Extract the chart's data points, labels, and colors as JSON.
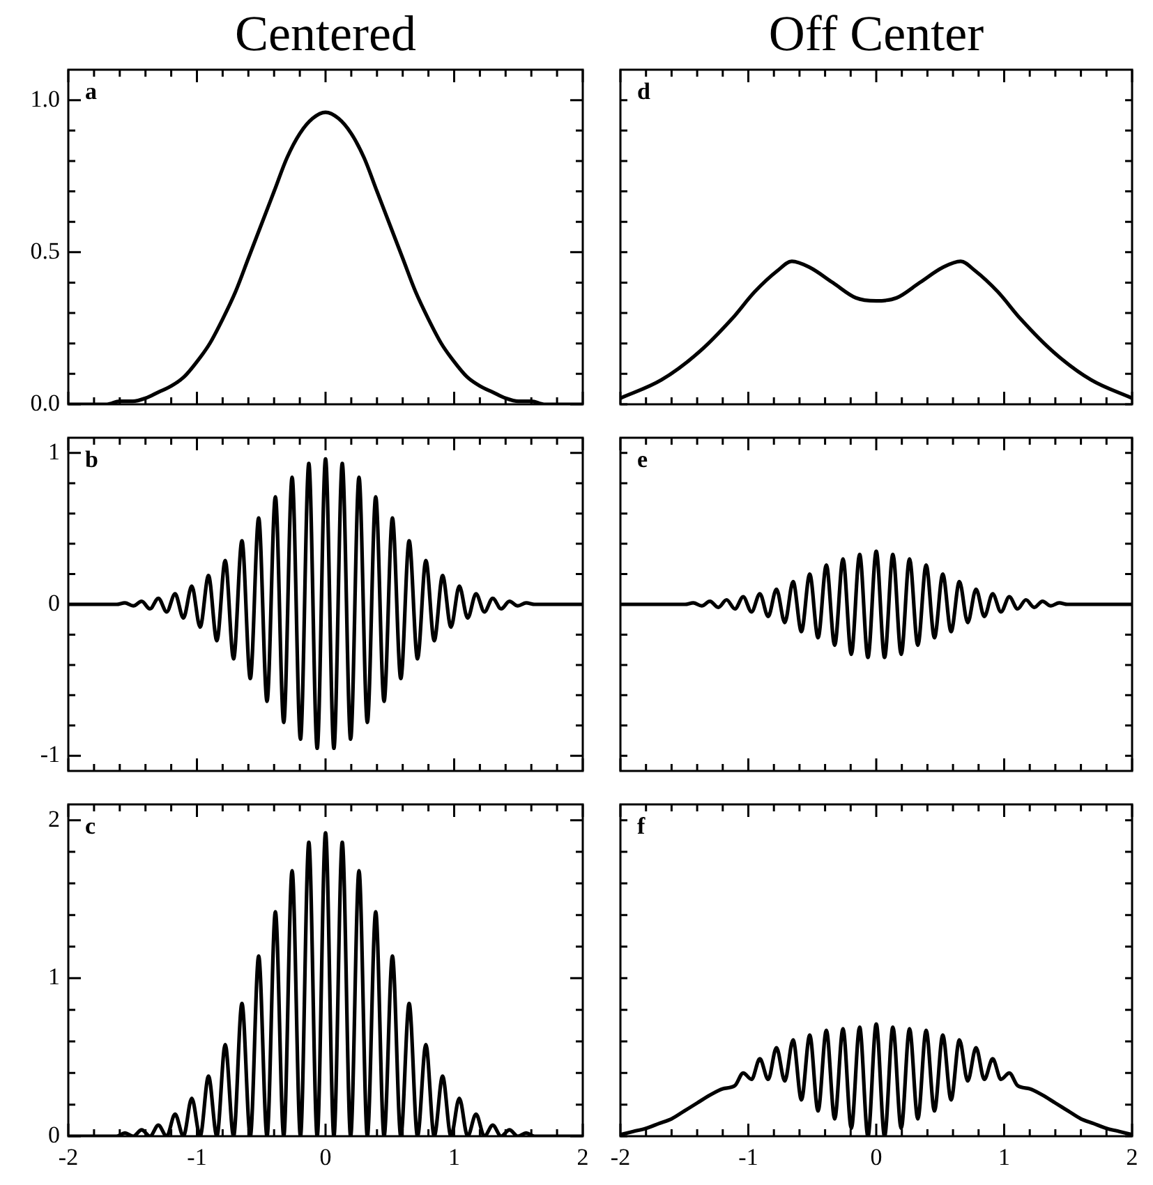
{
  "chart_data": [
    {
      "type": "line",
      "title": "Centered",
      "annotations": [
        "a"
      ],
      "color": "#000000",
      "tick_labels": "y",
      "xlim": [
        -2,
        2
      ],
      "ylim": [
        0,
        1.1
      ],
      "xticks": [
        -2,
        {
          "value": -1.8,
          "label": null
        },
        {
          "value": -1.6,
          "label": null
        },
        {
          "value": -1.4,
          "label": null
        },
        {
          "value": -1.2,
          "label": null
        },
        -1,
        {
          "value": -0.8,
          "label": null
        },
        {
          "value": -0.6,
          "label": null
        },
        {
          "value": -0.4,
          "label": null
        },
        {
          "value": -0.2,
          "label": null
        },
        0,
        {
          "value": 0.2,
          "label": null
        },
        {
          "value": 0.4,
          "label": null
        },
        {
          "value": 0.6,
          "label": null
        },
        {
          "value": 0.8,
          "label": null
        },
        1,
        {
          "value": 1.2,
          "label": null
        },
        {
          "value": 1.4,
          "label": null
        },
        {
          "value": 1.6,
          "label": null
        },
        {
          "value": 1.8,
          "label": null
        },
        2
      ],
      "yticks": [
        {
          "value": 0,
          "label": "0.0"
        },
        {
          "value": 0.1,
          "label": null
        },
        {
          "value": 0.2,
          "label": null
        },
        {
          "value": 0.3,
          "label": null
        },
        {
          "value": 0.4,
          "label": null
        },
        {
          "value": 0.5,
          "label": "0.5"
        },
        {
          "value": 0.6,
          "label": null
        },
        {
          "value": 0.7,
          "label": null
        },
        {
          "value": 0.8,
          "label": null
        },
        {
          "value": 0.9,
          "label": null
        },
        {
          "value": 1.0,
          "label": "1.0"
        }
      ],
      "x": [
        -2,
        -1.9,
        -1.8,
        -1.7,
        -1.6,
        -1.5,
        -1.4,
        -1.3,
        -1.2,
        -1.1,
        -1,
        -0.9,
        -0.8,
        -0.7,
        -0.6,
        -0.5,
        -0.4,
        -0.3,
        -0.2,
        -0.1,
        0,
        0.1,
        0.2,
        0.3,
        0.4,
        0.5,
        0.6,
        0.7,
        0.8,
        0.9,
        1,
        1.1,
        1.2,
        1.3,
        1.4,
        1.5,
        1.6,
        1.7,
        1.8,
        1.9,
        2
      ],
      "values": [
        0,
        0,
        0,
        0,
        0.01,
        0.01,
        0.02,
        0.04,
        0.06,
        0.09,
        0.14,
        0.2,
        0.28,
        0.37,
        0.48,
        0.59,
        0.7,
        0.81,
        0.89,
        0.94,
        0.96,
        0.94,
        0.89,
        0.81,
        0.7,
        0.59,
        0.48,
        0.37,
        0.28,
        0.2,
        0.14,
        0.09,
        0.06,
        0.04,
        0.02,
        0.01,
        0.01,
        0,
        0,
        0,
        0
      ]
    },
    {
      "type": "line",
      "title": "Off Center",
      "annotations": [
        "d"
      ],
      "color": "#000000",
      "tick_labels": false,
      "xlim": [
        -2,
        2
      ],
      "ylim": [
        0,
        1.1
      ],
      "xticks": [
        -2,
        {
          "value": -1.8,
          "label": null
        },
        {
          "value": -1.6,
          "label": null
        },
        {
          "value": -1.4,
          "label": null
        },
        {
          "value": -1.2,
          "label": null
        },
        -1,
        {
          "value": -0.8,
          "label": null
        },
        {
          "value": -0.6,
          "label": null
        },
        {
          "value": -0.4,
          "label": null
        },
        {
          "value": -0.2,
          "label": null
        },
        0,
        {
          "value": 0.2,
          "label": null
        },
        {
          "value": 0.4,
          "label": null
        },
        {
          "value": 0.6,
          "label": null
        },
        {
          "value": 0.8,
          "label": null
        },
        1,
        {
          "value": 1.2,
          "label": null
        },
        {
          "value": 1.4,
          "label": null
        },
        {
          "value": 1.6,
          "label": null
        },
        {
          "value": 1.8,
          "label": null
        },
        2
      ],
      "yticks": [
        {
          "value": 0,
          "label": null
        },
        {
          "value": 0.1,
          "label": null
        },
        {
          "value": 0.2,
          "label": null
        },
        {
          "value": 0.3,
          "label": null
        },
        {
          "value": 0.4,
          "label": null
        },
        {
          "value": 0.5,
          "label": null
        },
        {
          "value": 0.6,
          "label": null
        },
        {
          "value": 0.7,
          "label": null
        },
        {
          "value": 0.8,
          "label": null
        },
        {
          "value": 0.9,
          "label": null
        },
        {
          "value": 1.0,
          "label": null
        }
      ],
      "x": [
        -2,
        -1.68,
        -1.39,
        -1.13,
        -0.95,
        -0.77,
        -0.66,
        -0.52,
        -0.34,
        -0.16,
        0,
        0.16,
        0.34,
        0.52,
        0.66,
        0.77,
        0.95,
        1.13,
        1.39,
        1.68,
        2
      ],
      "values": [
        0.02,
        0.08,
        0.17,
        0.28,
        0.37,
        0.44,
        0.47,
        0.45,
        0.4,
        0.35,
        0.34,
        0.35,
        0.4,
        0.45,
        0.47,
        0.44,
        0.37,
        0.28,
        0.17,
        0.08,
        0.02
      ]
    },
    {
      "type": "line",
      "annotations": [
        "b"
      ],
      "color": "#000000",
      "tick_labels": "y",
      "xlim": [
        -2,
        2
      ],
      "ylim": [
        -1.1,
        1.1
      ],
      "xticks": [
        -2,
        {
          "value": -1.8,
          "label": null
        },
        {
          "value": -1.6,
          "label": null
        },
        {
          "value": -1.4,
          "label": null
        },
        {
          "value": -1.2,
          "label": null
        },
        -1,
        {
          "value": -0.8,
          "label": null
        },
        {
          "value": -0.6,
          "label": null
        },
        {
          "value": -0.4,
          "label": null
        },
        {
          "value": -0.2,
          "label": null
        },
        0,
        {
          "value": 0.2,
          "label": null
        },
        {
          "value": 0.4,
          "label": null
        },
        {
          "value": 0.6,
          "label": null
        },
        {
          "value": 0.8,
          "label": null
        },
        1,
        {
          "value": 1.2,
          "label": null
        },
        {
          "value": 1.4,
          "label": null
        },
        {
          "value": 1.6,
          "label": null
        },
        {
          "value": 1.8,
          "label": null
        },
        2
      ],
      "yticks": [
        -1,
        {
          "value": -0.8,
          "label": null
        },
        {
          "value": -0.6,
          "label": null
        },
        {
          "value": -0.4,
          "label": null
        },
        {
          "value": -0.2,
          "label": null
        },
        0,
        {
          "value": 0.2,
          "label": null
        },
        {
          "value": 0.4,
          "label": null
        },
        {
          "value": 0.6,
          "label": null
        },
        {
          "value": 0.8,
          "label": null
        },
        1
      ],
      "x": [
        -2,
        -1.625,
        -1.56,
        -1.495,
        -1.43,
        -1.365,
        -1.3,
        -1.235,
        -1.17,
        -1.105,
        -1.04,
        -0.975,
        -0.91,
        -0.845,
        -0.78,
        -0.715,
        -0.65,
        -0.585,
        -0.52,
        -0.455,
        -0.39,
        -0.325,
        -0.26,
        -0.195,
        -0.13,
        -0.065,
        0,
        0.065,
        0.13,
        0.195,
        0.26,
        0.325,
        0.39,
        0.455,
        0.52,
        0.585,
        0.65,
        0.715,
        0.78,
        0.845,
        0.91,
        0.975,
        1.04,
        1.105,
        1.17,
        1.235,
        1.3,
        1.365,
        1.43,
        1.495,
        1.56,
        1.625,
        2
      ],
      "values": [
        0,
        0,
        0.01,
        -0.01,
        0.02,
        -0.03,
        0.04,
        -0.05,
        0.07,
        -0.09,
        0.12,
        -0.15,
        0.19,
        -0.24,
        0.29,
        -0.36,
        0.42,
        -0.49,
        0.57,
        -0.64,
        0.71,
        -0.78,
        0.84,
        -0.89,
        0.93,
        -0.95,
        0.96,
        -0.95,
        0.93,
        -0.89,
        0.84,
        -0.78,
        0.71,
        -0.64,
        0.57,
        -0.49,
        0.42,
        -0.36,
        0.29,
        -0.24,
        0.19,
        -0.15,
        0.12,
        -0.09,
        0.07,
        -0.05,
        0.04,
        -0.03,
        0.02,
        -0.01,
        0.01,
        0,
        0
      ]
    },
    {
      "type": "line",
      "annotations": [
        "e"
      ],
      "color": "#000000",
      "tick_labels": false,
      "xlim": [
        -2,
        2
      ],
      "ylim": [
        -1.1,
        1.1
      ],
      "xticks": [
        -2,
        {
          "value": -1.8,
          "label": null
        },
        {
          "value": -1.6,
          "label": null
        },
        {
          "value": -1.4,
          "label": null
        },
        {
          "value": -1.2,
          "label": null
        },
        -1,
        {
          "value": -0.8,
          "label": null
        },
        {
          "value": -0.6,
          "label": null
        },
        {
          "value": -0.4,
          "label": null
        },
        {
          "value": -0.2,
          "label": null
        },
        0,
        {
          "value": 0.2,
          "label": null
        },
        {
          "value": 0.4,
          "label": null
        },
        {
          "value": 0.6,
          "label": null
        },
        {
          "value": 0.8,
          "label": null
        },
        1,
        {
          "value": 1.2,
          "label": null
        },
        {
          "value": 1.4,
          "label": null
        },
        {
          "value": 1.6,
          "label": null
        },
        {
          "value": 1.8,
          "label": null
        },
        2
      ],
      "yticks": [
        {
          "value": -1,
          "label": null
        },
        {
          "value": -0.8,
          "label": null
        },
        {
          "value": -0.6,
          "label": null
        },
        {
          "value": -0.4,
          "label": null
        },
        {
          "value": -0.2,
          "label": null
        },
        {
          "value": 0,
          "label": null
        },
        {
          "value": 0.2,
          "label": null
        },
        {
          "value": 0.4,
          "label": null
        },
        {
          "value": 0.6,
          "label": null
        },
        {
          "value": 0.8,
          "label": null
        },
        {
          "value": 1,
          "label": null
        }
      ],
      "x": [
        -2,
        -1.625,
        -1.56,
        -1.495,
        -1.43,
        -1.365,
        -1.3,
        -1.235,
        -1.17,
        -1.105,
        -1.04,
        -0.975,
        -0.91,
        -0.845,
        -0.78,
        -0.715,
        -0.65,
        -0.585,
        -0.52,
        -0.455,
        -0.39,
        -0.325,
        -0.26,
        -0.195,
        -0.13,
        -0.065,
        0,
        0.065,
        0.13,
        0.195,
        0.26,
        0.325,
        0.39,
        0.455,
        0.52,
        0.585,
        0.65,
        0.715,
        0.78,
        0.845,
        0.91,
        0.975,
        1.04,
        1.105,
        1.17,
        1.235,
        1.3,
        1.365,
        1.43,
        1.495,
        1.56,
        1.625,
        2
      ],
      "values": [
        0,
        0,
        0,
        0,
        0.01,
        -0.01,
        0.02,
        -0.02,
        0.03,
        -0.03,
        0.05,
        -0.05,
        0.07,
        -0.08,
        0.1,
        -0.12,
        0.15,
        -0.18,
        0.2,
        -0.22,
        0.26,
        -0.27,
        0.3,
        -0.33,
        0.33,
        -0.35,
        0.35,
        -0.35,
        0.33,
        -0.33,
        0.3,
        -0.27,
        0.26,
        -0.22,
        0.2,
        -0.18,
        0.15,
        -0.12,
        0.1,
        -0.08,
        0.07,
        -0.05,
        0.05,
        -0.03,
        0.03,
        -0.02,
        0.02,
        -0.01,
        0.01,
        0,
        0,
        0,
        0
      ]
    },
    {
      "type": "line",
      "annotations": [
        "c"
      ],
      "color": "#000000",
      "xlim": [
        -2,
        2
      ],
      "ylim": [
        0,
        2.1
      ],
      "xticks": [
        -2,
        {
          "value": -1.8,
          "label": null
        },
        {
          "value": -1.6,
          "label": null
        },
        {
          "value": -1.4,
          "label": null
        },
        {
          "value": -1.2,
          "label": null
        },
        -1,
        {
          "value": -0.8,
          "label": null
        },
        {
          "value": -0.6,
          "label": null
        },
        {
          "value": -0.4,
          "label": null
        },
        {
          "value": -0.2,
          "label": null
        },
        0,
        {
          "value": 0.2,
          "label": null
        },
        {
          "value": 0.4,
          "label": null
        },
        {
          "value": 0.6,
          "label": null
        },
        {
          "value": 0.8,
          "label": null
        },
        1,
        {
          "value": 1.2,
          "label": null
        },
        {
          "value": 1.4,
          "label": null
        },
        {
          "value": 1.6,
          "label": null
        },
        {
          "value": 1.8,
          "label": null
        },
        2
      ],
      "yticks": [
        0,
        {
          "value": 0.2,
          "label": null
        },
        {
          "value": 0.4,
          "label": null
        },
        {
          "value": 0.6,
          "label": null
        },
        {
          "value": 0.8,
          "label": null
        },
        1,
        {
          "value": 1.2,
          "label": null
        },
        {
          "value": 1.4,
          "label": null
        },
        {
          "value": 1.6,
          "label": null
        },
        {
          "value": 1.8,
          "label": null
        },
        2
      ],
      "x": [
        -2,
        -1.625,
        -1.56,
        -1.495,
        -1.43,
        -1.365,
        -1.3,
        -1.235,
        -1.17,
        -1.105,
        -1.04,
        -0.975,
        -0.91,
        -0.845,
        -0.78,
        -0.715,
        -0.65,
        -0.585,
        -0.52,
        -0.455,
        -0.39,
        -0.325,
        -0.26,
        -0.195,
        -0.13,
        -0.065,
        0,
        0.065,
        0.13,
        0.195,
        0.26,
        0.325,
        0.39,
        0.455,
        0.52,
        0.585,
        0.65,
        0.715,
        0.78,
        0.845,
        0.91,
        0.975,
        1.04,
        1.105,
        1.17,
        1.235,
        1.3,
        1.365,
        1.43,
        1.495,
        1.56,
        1.625,
        2
      ],
      "values": [
        0,
        0,
        0.02,
        0,
        0.04,
        0,
        0.07,
        0,
        0.14,
        0,
        0.24,
        0,
        0.38,
        0,
        0.58,
        0,
        0.84,
        0,
        1.14,
        0,
        1.42,
        0,
        1.68,
        0,
        1.86,
        0,
        1.92,
        0,
        1.86,
        0,
        1.68,
        0,
        1.42,
        0,
        1.14,
        0,
        0.84,
        0,
        0.58,
        0,
        0.38,
        0,
        0.24,
        0,
        0.14,
        0,
        0.07,
        0,
        0.04,
        0,
        0.02,
        0,
        0
      ]
    },
    {
      "type": "line",
      "annotations": [
        "f"
      ],
      "color": "#000000",
      "tick_labels": "x",
      "xlim": [
        -2,
        2
      ],
      "ylim": [
        0,
        2.1
      ],
      "xticks": [
        -2,
        {
          "value": -1.8,
          "label": null
        },
        {
          "value": -1.6,
          "label": null
        },
        {
          "value": -1.4,
          "label": null
        },
        {
          "value": -1.2,
          "label": null
        },
        -1,
        {
          "value": -0.8,
          "label": null
        },
        {
          "value": -0.6,
          "label": null
        },
        {
          "value": -0.4,
          "label": null
        },
        {
          "value": -0.2,
          "label": null
        },
        0,
        {
          "value": 0.2,
          "label": null
        },
        {
          "value": 0.4,
          "label": null
        },
        {
          "value": 0.6,
          "label": null
        },
        {
          "value": 0.8,
          "label": null
        },
        1,
        {
          "value": 1.2,
          "label": null
        },
        {
          "value": 1.4,
          "label": null
        },
        {
          "value": 1.6,
          "label": null
        },
        {
          "value": 1.8,
          "label": null
        },
        2
      ],
      "yticks": [
        {
          "value": 0,
          "label": null
        },
        {
          "value": 0.2,
          "label": null
        },
        {
          "value": 0.4,
          "label": null
        },
        {
          "value": 0.6,
          "label": null
        },
        {
          "value": 0.8,
          "label": null
        },
        {
          "value": 1,
          "label": null
        },
        {
          "value": 1.2,
          "label": null
        },
        {
          "value": 1.4,
          "label": null
        },
        {
          "value": 1.6,
          "label": null
        },
        {
          "value": 1.8,
          "label": null
        },
        {
          "value": 2,
          "label": null
        }
      ],
      "x": [
        -2,
        -1.9,
        -1.8,
        -1.7,
        -1.6,
        -1.5,
        -1.4,
        -1.3,
        -1.2,
        -1.105,
        -1.04,
        -0.975,
        -0.91,
        -0.845,
        -0.78,
        -0.715,
        -0.65,
        -0.585,
        -0.52,
        -0.455,
        -0.39,
        -0.325,
        -0.26,
        -0.195,
        -0.13,
        -0.065,
        0,
        0.065,
        0.13,
        0.195,
        0.26,
        0.325,
        0.39,
        0.455,
        0.52,
        0.585,
        0.65,
        0.715,
        0.78,
        0.845,
        0.91,
        0.975,
        1.04,
        1.105,
        1.2,
        1.3,
        1.4,
        1.5,
        1.6,
        1.7,
        1.8,
        1.9,
        2
      ],
      "values": [
        0.01,
        0.03,
        0.05,
        0.08,
        0.11,
        0.16,
        0.21,
        0.26,
        0.3,
        0.32,
        0.4,
        0.36,
        0.49,
        0.36,
        0.56,
        0.35,
        0.61,
        0.23,
        0.64,
        0.16,
        0.67,
        0.11,
        0.68,
        0.05,
        0.69,
        0,
        0.71,
        0,
        0.69,
        0.05,
        0.68,
        0.11,
        0.67,
        0.16,
        0.64,
        0.23,
        0.61,
        0.35,
        0.56,
        0.36,
        0.49,
        0.36,
        0.4,
        0.32,
        0.3,
        0.26,
        0.21,
        0.16,
        0.11,
        0.08,
        0.05,
        0.03,
        0.01
      ]
    }
  ]
}
